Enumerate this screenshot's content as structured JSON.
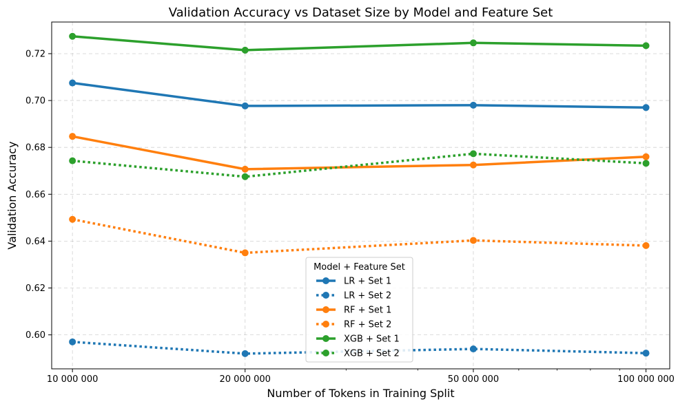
{
  "chart_data": {
    "type": "line",
    "title": "Validation Accuracy vs Dataset Size by Model and Feature Set",
    "xlabel": "Number of Tokens in Training Split",
    "ylabel": "Validation Accuracy",
    "x_scale": "log",
    "xlim": [
      9200000,
      110000000
    ],
    "ylim": [
      0.5855,
      0.7335
    ],
    "x": [
      10000000,
      20000000,
      50000000,
      100000000
    ],
    "x_tick_values": [
      10000000,
      20000000,
      50000000,
      100000000
    ],
    "x_tick_labels": [
      "10 000 000",
      "20 000 000",
      "50 000 000",
      "100 000 000"
    ],
    "y_ticks": [
      0.6,
      0.62,
      0.64,
      0.66,
      0.68,
      0.7,
      0.72
    ],
    "y_tick_labels": [
      "0.60",
      "0.62",
      "0.64",
      "0.66",
      "0.68",
      "0.70",
      "0.72"
    ],
    "grid": true,
    "legend": {
      "title": "Model + Feature Set",
      "placement": "lower-center"
    },
    "series": [
      {
        "name": "LR + Set 1",
        "color": "#1f77b4",
        "style": "solid",
        "values": [
          0.7075,
          0.6977,
          0.698,
          0.697
        ]
      },
      {
        "name": "LR + Set 2",
        "color": "#1f77b4",
        "style": "dotted",
        "values": [
          0.597,
          0.592,
          0.594,
          0.5922
        ]
      },
      {
        "name": "RF + Set 1",
        "color": "#ff7f0e",
        "style": "solid",
        "values": [
          0.6847,
          0.6707,
          0.6725,
          0.676
        ]
      },
      {
        "name": "RF + Set 2",
        "color": "#ff7f0e",
        "style": "dotted",
        "values": [
          0.6493,
          0.635,
          0.6403,
          0.6381
        ]
      },
      {
        "name": "XGB + Set 1",
        "color": "#2ca02c",
        "style": "solid",
        "values": [
          0.7274,
          0.7215,
          0.7246,
          0.7234
        ]
      },
      {
        "name": "XGB + Set 2",
        "color": "#2ca02c",
        "style": "dotted",
        "values": [
          0.6743,
          0.6675,
          0.6773,
          0.6732
        ]
      }
    ]
  }
}
